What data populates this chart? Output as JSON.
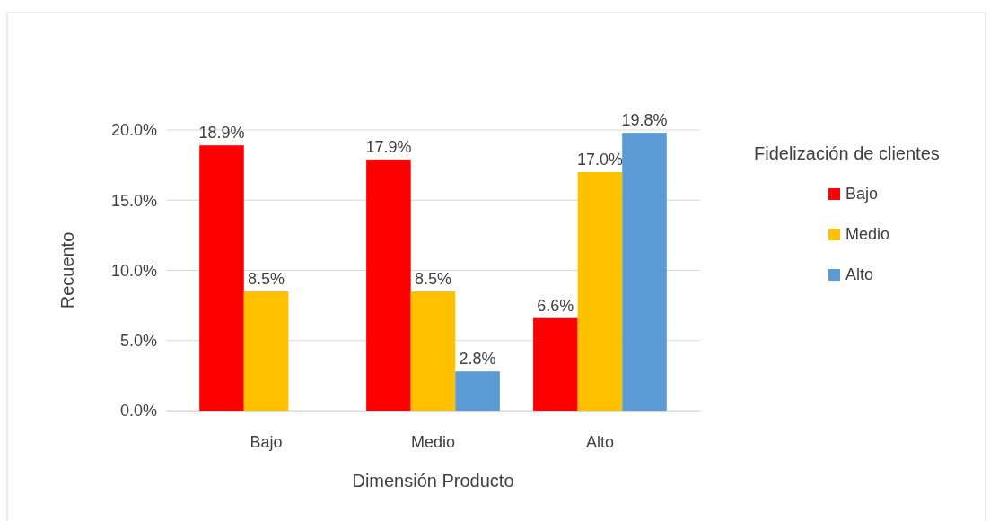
{
  "chart_data": {
    "type": "bar",
    "xlabel": "Dimensión Producto",
    "ylabel": "Recuento",
    "legend_title": "Fidelización de clientes",
    "categories": [
      "Bajo",
      "Medio",
      "Alto"
    ],
    "series": [
      {
        "name": "Bajo",
        "color": "#ff0000",
        "values": [
          18.9,
          17.9,
          6.6
        ],
        "value_labels": [
          "18.9%",
          "17.9%",
          "6.6%"
        ]
      },
      {
        "name": "Medio",
        "color": "#ffc000",
        "values": [
          8.5,
          8.5,
          17.0
        ],
        "value_labels": [
          "8.5%",
          "8.5%",
          "17.0%"
        ]
      },
      {
        "name": "Alto",
        "color": "#5b9bd5",
        "values": [
          null,
          2.8,
          19.8
        ],
        "value_labels": [
          null,
          "2.8%",
          "19.8%"
        ]
      }
    ],
    "ylim": [
      0,
      20
    ],
    "yticks": [
      {
        "value": 0,
        "label": "0.0%"
      },
      {
        "value": 5,
        "label": "5.0%"
      },
      {
        "value": 10,
        "label": "10.0%"
      },
      {
        "value": 15,
        "label": "15.0%"
      },
      {
        "value": 20,
        "label": "20.0%"
      }
    ],
    "grid": "y",
    "legend": "right"
  }
}
